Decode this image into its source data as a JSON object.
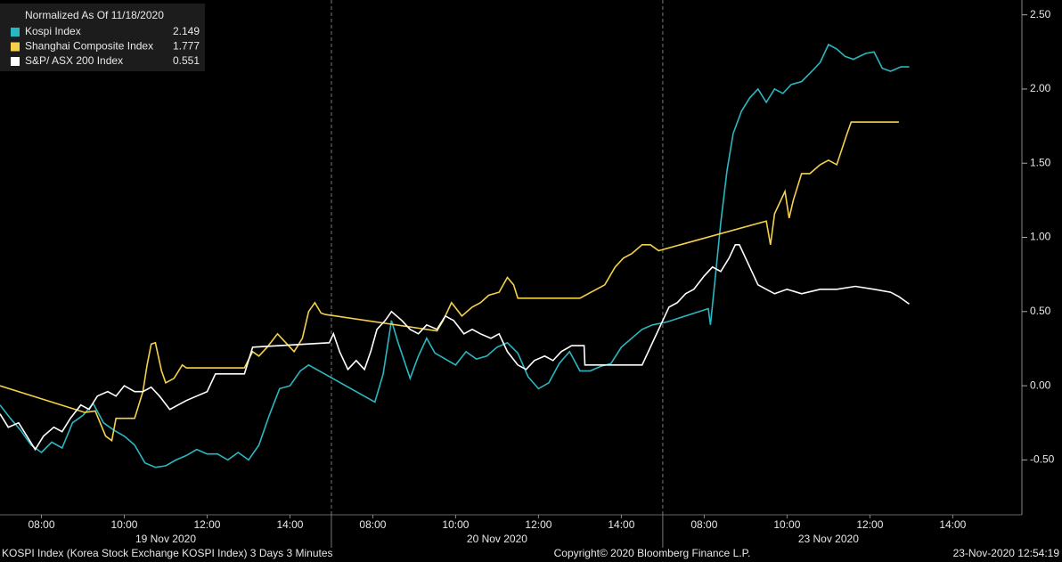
{
  "chart_data": {
    "type": "line",
    "legend_title": "Normalized As Of 11/18/2020",
    "xlim": [
      0,
      24.67
    ],
    "ylim": [
      -0.87,
      2.6
    ],
    "xticks": [
      {
        "value": 1,
        "label": "08:00"
      },
      {
        "value": 3,
        "label": "10:00"
      },
      {
        "value": 5,
        "label": "12:00"
      },
      {
        "value": 7,
        "label": "14:00"
      },
      {
        "value": 9,
        "label": "08:00"
      },
      {
        "value": 11,
        "label": "10:00"
      },
      {
        "value": 13,
        "label": "12:00"
      },
      {
        "value": 15,
        "label": "14:00"
      },
      {
        "value": 17,
        "label": "08:00"
      },
      {
        "value": 19,
        "label": "10:00"
      },
      {
        "value": 21,
        "label": "12:00"
      },
      {
        "value": 23,
        "label": "14:00"
      }
    ],
    "date_labels": [
      {
        "value": 4,
        "label": "19 Nov 2020"
      },
      {
        "value": 12,
        "label": "20 Nov 2020"
      },
      {
        "value": 20,
        "label": "23 Nov 2020"
      }
    ],
    "day_breaks": [
      8,
      16
    ],
    "yticks": [
      {
        "value": -0.5,
        "label": "-0.50"
      },
      {
        "value": 0,
        "label": "0.00"
      },
      {
        "value": 0.5,
        "label": "0.50"
      },
      {
        "value": 1,
        "label": "1.00"
      },
      {
        "value": 1.5,
        "label": "1.50"
      },
      {
        "value": 2,
        "label": "2.00"
      },
      {
        "value": 2.5,
        "label": "2.50"
      }
    ],
    "series": [
      {
        "name": "Kospi Index",
        "color": "#2ab7c2",
        "x": [
          0,
          0.25,
          0.5,
          0.75,
          1,
          1.25,
          1.5,
          1.75,
          2,
          2.25,
          2.5,
          2.75,
          3,
          3.25,
          3.5,
          3.75,
          4,
          4.25,
          4.5,
          4.75,
          5,
          5.25,
          5.5,
          5.75,
          6,
          6.25,
          6.5,
          6.75,
          7,
          7.25,
          7.45,
          9.05,
          9.25,
          9.45,
          9.6,
          9.9,
          10.1,
          10.3,
          10.5,
          10.75,
          11,
          11.25,
          11.5,
          11.75,
          12,
          12.25,
          12.5,
          12.75,
          13,
          13.25,
          13.5,
          13.75,
          14,
          14.25,
          14.5,
          14.75,
          15,
          15.25,
          15.5,
          15.75,
          16.1,
          17.1,
          17.15,
          17.25,
          17.4,
          17.55,
          17.7,
          17.9,
          18.1,
          18.3,
          18.5,
          18.7,
          18.9,
          19.1,
          19.35,
          19.6,
          19.8,
          20,
          20.2,
          20.4,
          20.6,
          20.9,
          21.1,
          21.3,
          21.5,
          21.75,
          21.95
        ],
        "values": [
          -0.13,
          -0.22,
          -0.3,
          -0.4,
          -0.45,
          -0.38,
          -0.42,
          -0.25,
          -0.2,
          -0.12,
          -0.25,
          -0.3,
          -0.34,
          -0.4,
          -0.52,
          -0.55,
          -0.54,
          -0.5,
          -0.47,
          -0.43,
          -0.46,
          -0.46,
          -0.5,
          -0.45,
          -0.5,
          -0.4,
          -0.2,
          -0.02,
          0,
          0.1,
          0.14,
          -0.11,
          0.08,
          0.44,
          0.3,
          0.05,
          0.2,
          0.32,
          0.22,
          0.18,
          0.14,
          0.23,
          0.18,
          0.2,
          0.26,
          0.29,
          0.22,
          0.06,
          -0.02,
          0.02,
          0.15,
          0.23,
          0.1,
          0.1,
          0.13,
          0.15,
          0.26,
          0.32,
          0.38,
          0.41,
          0.43,
          0.52,
          0.41,
          0.68,
          1.1,
          1.45,
          1.7,
          1.85,
          1.94,
          2.0,
          1.91,
          2.0,
          1.97,
          2.03,
          2.05,
          2.12,
          2.18,
          2.3,
          2.27,
          2.22,
          2.2,
          2.24,
          2.25,
          2.14,
          2.12,
          2.15,
          2.149
        ]
      },
      {
        "name": "Shanghai Composite Index",
        "color": "#f5d14b",
        "x": [
          0,
          2.05,
          2.3,
          2.55,
          2.7,
          2.8,
          3,
          3.25,
          3.45,
          3.55,
          3.65,
          3.75,
          3.9,
          4,
          4.2,
          4.4,
          4.5,
          5.9,
          6.1,
          6.25,
          6.45,
          6.7,
          6.9,
          7.1,
          7.3,
          7.45,
          7.6,
          7.75,
          7.85,
          10.55,
          10.7,
          10.9,
          11.15,
          11.4,
          11.6,
          11.8,
          12.05,
          12.25,
          12.4,
          12.5,
          14,
          14.2,
          14.4,
          14.6,
          14.85,
          15.05,
          15.25,
          15.5,
          15.7,
          15.9,
          18.5,
          18.6,
          18.7,
          18.8,
          18.95,
          19.05,
          19.15,
          19.35,
          19.55,
          19.8,
          20,
          20.2,
          20.45,
          20.55,
          21.7
        ],
        "values": [
          0,
          -0.18,
          -0.17,
          -0.34,
          -0.37,
          -0.22,
          -0.22,
          -0.22,
          -0.04,
          0.14,
          0.28,
          0.29,
          0.1,
          0.02,
          0.05,
          0.14,
          0.12,
          0.12,
          0.23,
          0.2,
          0.26,
          0.35,
          0.29,
          0.23,
          0.32,
          0.5,
          0.56,
          0.49,
          0.48,
          0.37,
          0.44,
          0.56,
          0.47,
          0.53,
          0.56,
          0.61,
          0.63,
          0.73,
          0.68,
          0.59,
          0.59,
          0.62,
          0.65,
          0.68,
          0.8,
          0.86,
          0.89,
          0.95,
          0.95,
          0.91,
          1.11,
          0.95,
          1.16,
          1.22,
          1.31,
          1.13,
          1.25,
          1.43,
          1.43,
          1.49,
          1.52,
          1.49,
          1.7,
          1.777,
          1.777
        ]
      },
      {
        "name": "S&P/ ASX 200 Index",
        "color": "#ffffff",
        "x": [
          0,
          0.2,
          0.45,
          0.65,
          0.85,
          1.05,
          1.3,
          1.5,
          1.7,
          1.95,
          2.15,
          2.35,
          2.6,
          2.8,
          3,
          3.25,
          3.45,
          3.65,
          3.85,
          4.1,
          4.3,
          4.5,
          4.75,
          5,
          5.2,
          5.5,
          5.9,
          6.1,
          7.95,
          8.05,
          8.2,
          8.4,
          8.6,
          8.8,
          8.95,
          9.1,
          9.3,
          9.45,
          9.7,
          9.9,
          10.1,
          10.3,
          10.55,
          10.75,
          10.95,
          11.2,
          11.4,
          11.6,
          11.85,
          12.05,
          12.25,
          12.5,
          12.7,
          12.9,
          13.15,
          13.35,
          13.55,
          13.8,
          14.1,
          14.12,
          15.5,
          15.9,
          16.15,
          16.35,
          16.55,
          16.75,
          17,
          17.2,
          17.4,
          17.6,
          17.75,
          17.85,
          18.05,
          18.3,
          18.5,
          18.7,
          19,
          19.35,
          19.8,
          20.2,
          20.65,
          21.1,
          21.5,
          21.7,
          21.95
        ],
        "values": [
          -0.19,
          -0.28,
          -0.25,
          -0.34,
          -0.43,
          -0.34,
          -0.28,
          -0.31,
          -0.22,
          -0.13,
          -0.16,
          -0.07,
          -0.04,
          -0.07,
          0,
          -0.04,
          -0.04,
          -0.01,
          -0.07,
          -0.16,
          -0.13,
          -0.1,
          -0.07,
          -0.04,
          0.08,
          0.08,
          0.08,
          0.26,
          0.29,
          0.35,
          0.23,
          0.11,
          0.17,
          0.11,
          0.23,
          0.38,
          0.44,
          0.5,
          0.44,
          0.38,
          0.35,
          0.41,
          0.38,
          0.47,
          0.44,
          0.35,
          0.38,
          0.35,
          0.32,
          0.35,
          0.23,
          0.14,
          0.11,
          0.17,
          0.2,
          0.17,
          0.23,
          0.27,
          0.27,
          0.14,
          0.14,
          0.38,
          0.53,
          0.56,
          0.62,
          0.65,
          0.74,
          0.8,
          0.77,
          0.86,
          0.95,
          0.95,
          0.83,
          0.68,
          0.65,
          0.62,
          0.65,
          0.62,
          0.65,
          0.65,
          0.67,
          0.65,
          0.63,
          0.6,
          0.551
        ]
      }
    ],
    "footer_left": "KOSPI Index (Korea Stock Exchange KOSPI Index) 3 Days 3 Minutes",
    "footer_center": "Copyright© 2020 Bloomberg Finance L.P.",
    "footer_right": "23-Nov-2020 12:54:19"
  }
}
